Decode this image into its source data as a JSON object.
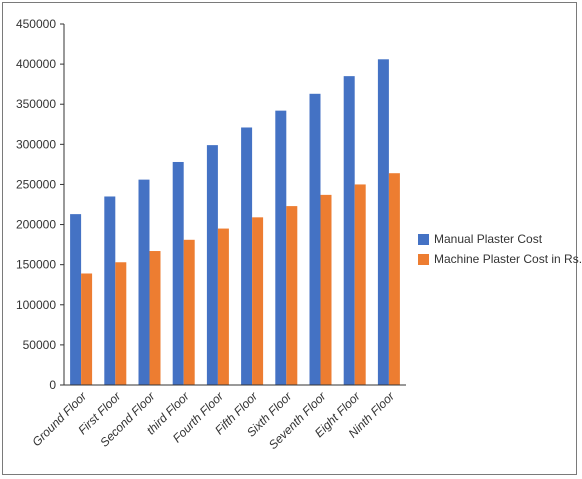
{
  "chart_data": {
    "type": "bar",
    "title": "",
    "xlabel": "",
    "ylabel": "",
    "categories": [
      "Ground Floor",
      "First Floor",
      "Second Floor",
      "third Floor",
      "Fourth Floor",
      "Fifth Floor",
      "Sixth Floor",
      "Seventh Floor",
      "Eight Floor",
      "Ninth Floor"
    ],
    "series": [
      {
        "name": "Manual Plaster Cost",
        "color": "#4472C4",
        "values": [
          213000,
          235000,
          256000,
          278000,
          299000,
          321000,
          342000,
          363000,
          385000,
          406000
        ]
      },
      {
        "name": "Machine Plaster Cost in Rs.",
        "color": "#ED7D31",
        "values": [
          139000,
          153000,
          167000,
          181000,
          195000,
          209000,
          223000,
          237000,
          250000,
          264000
        ]
      }
    ],
    "ylim": [
      0,
      450000
    ],
    "yticks": [
      "0",
      "50000",
      "100000",
      "150000",
      "200000",
      "250000",
      "300000",
      "350000",
      "400000",
      "450000"
    ],
    "grid": false,
    "legend_position": "right"
  }
}
